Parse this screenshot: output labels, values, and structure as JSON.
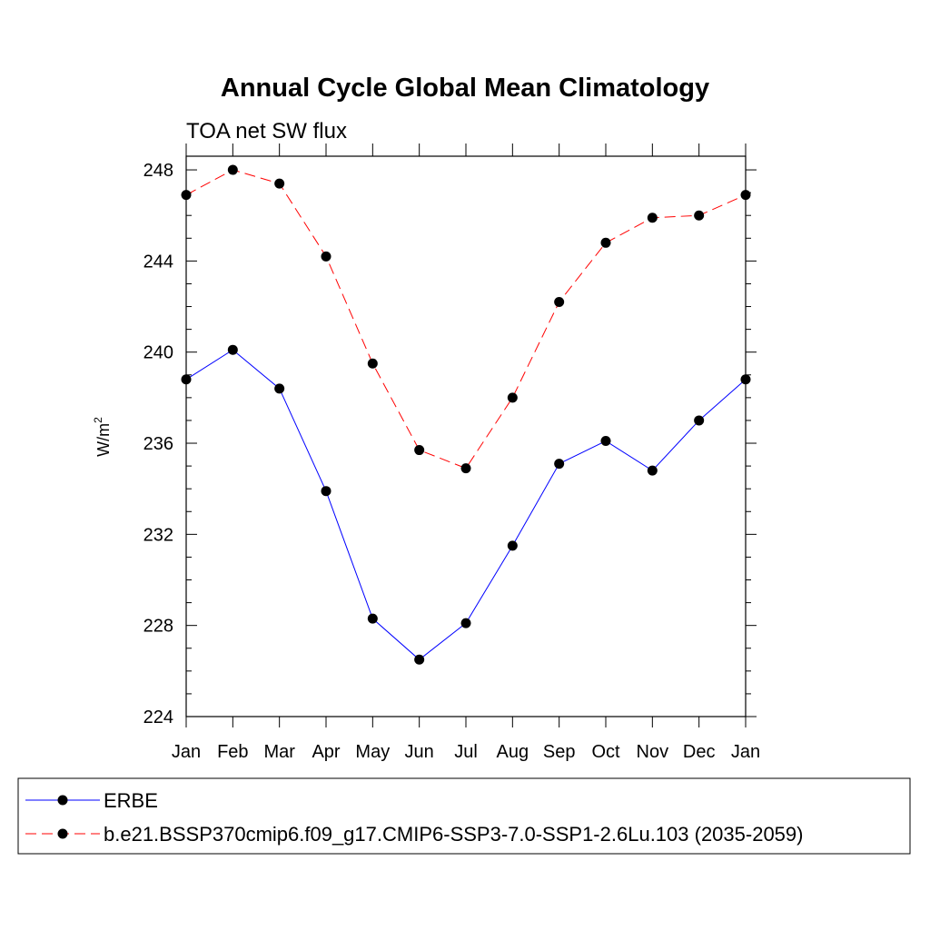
{
  "chart_data": {
    "type": "line",
    "title": "Annual Cycle Global Mean Climatology",
    "subtitle": "TOA net SW flux",
    "ylabel": "W/m",
    "ylabel_superscript": "2",
    "xlabel": "",
    "categories": [
      "Jan",
      "Feb",
      "Mar",
      "Apr",
      "May",
      "Jun",
      "Jul",
      "Aug",
      "Sep",
      "Oct",
      "Nov",
      "Dec",
      "Jan"
    ],
    "ylim": [
      224,
      248.6
    ],
    "yticks": [
      224,
      228,
      232,
      236,
      240,
      244,
      248
    ],
    "grid": false,
    "legend_position": "bottom",
    "series": [
      {
        "name": "ERBE",
        "color": "#0000ff",
        "line_style": "solid",
        "marker": "filled-circle",
        "values": [
          238.8,
          240.1,
          238.4,
          233.9,
          228.3,
          226.5,
          228.1,
          231.5,
          235.1,
          236.1,
          234.8,
          237.0,
          238.8
        ]
      },
      {
        "name": "b.e21.BSSP370cmip6.f09_g17.CMIP6-SSP3-7.0-SSP1-2.6Lu.103 (2035-2059)",
        "color": "#ff0000",
        "line_style": "dashed",
        "marker": "filled-circle",
        "values": [
          246.9,
          248.0,
          247.4,
          244.2,
          239.5,
          235.7,
          234.9,
          238.0,
          242.2,
          244.8,
          245.9,
          246.0,
          246.9
        ]
      }
    ]
  }
}
